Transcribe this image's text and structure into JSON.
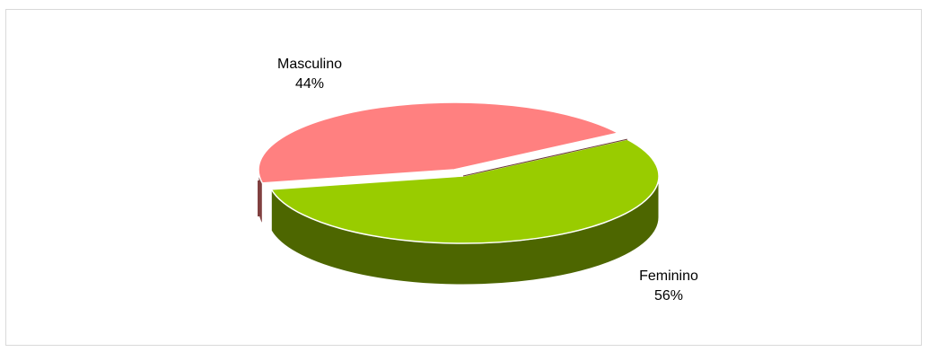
{
  "chart_data": {
    "type": "pie",
    "title": "",
    "categories": [
      "Masculino",
      "Feminino"
    ],
    "values": [
      44,
      56
    ],
    "labels": [
      {
        "category": "Masculino",
        "percent": "44%"
      },
      {
        "category": "Feminino",
        "percent": "56%"
      }
    ],
    "colors": {
      "Masculino": "#ff8080",
      "Feminino": "#99cc00",
      "Feminino_side": "#4d6600",
      "Masculino_side": "#804040",
      "frame_border": "#d9d9d9"
    },
    "legend": "none",
    "style": "3d-pie",
    "grid": false
  }
}
